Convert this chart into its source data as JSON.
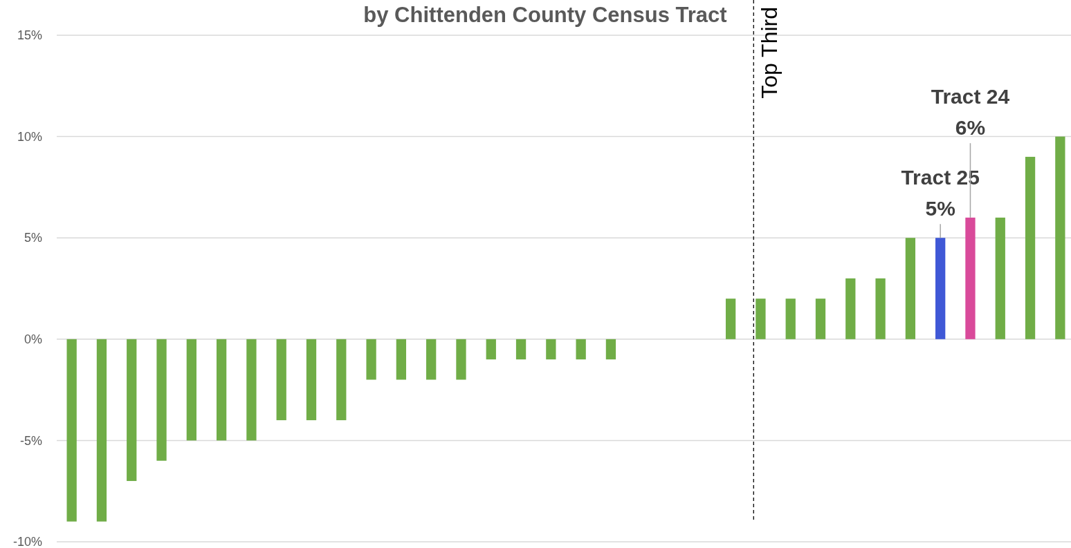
{
  "chart_data": {
    "type": "bar",
    "title": "by Chittenden County Census Tract",
    "categories": [
      null,
      null,
      null,
      null,
      null,
      null,
      null,
      null,
      null,
      null,
      null,
      null,
      null,
      null,
      null,
      null,
      null,
      null,
      null,
      null,
      null,
      null,
      null,
      null,
      null,
      null,
      null,
      null,
      null,
      null,
      null,
      null,
      null,
      null
    ],
    "values": [
      -9,
      -9,
      -7,
      -6,
      -5,
      -5,
      -5,
      -4,
      -4,
      -4,
      -2,
      -2,
      -2,
      -2,
      -1,
      -1,
      -1,
      -1,
      -1,
      0,
      0,
      0,
      2,
      2,
      2,
      2,
      3,
      3,
      5,
      5,
      6,
      6,
      9,
      10
    ],
    "colors": [
      "#70ad47",
      "#70ad47",
      "#70ad47",
      "#70ad47",
      "#70ad47",
      "#70ad47",
      "#70ad47",
      "#70ad47",
      "#70ad47",
      "#70ad47",
      "#70ad47",
      "#70ad47",
      "#70ad47",
      "#70ad47",
      "#70ad47",
      "#70ad47",
      "#70ad47",
      "#70ad47",
      "#70ad47",
      "#70ad47",
      "#70ad47",
      "#70ad47",
      "#70ad47",
      "#70ad47",
      "#70ad47",
      "#70ad47",
      "#70ad47",
      "#70ad47",
      "#70ad47",
      "#3f58d6",
      "#d94a9a",
      "#70ad47",
      "#70ad47",
      "#70ad47"
    ],
    "value_labels": [
      null,
      null,
      null,
      null,
      null,
      null,
      null,
      null,
      null,
      null,
      null,
      null,
      null,
      null,
      null,
      null,
      null,
      null,
      null,
      null,
      null,
      null,
      null,
      null,
      null,
      null,
      null,
      null,
      null,
      "Tract 25\n5%",
      "Tract 24\n6%",
      null,
      null,
      null
    ],
    "ylim": [
      -10,
      15
    ],
    "yticks": [
      {
        "value": -10,
        "label": "-10%"
      },
      {
        "value": -5,
        "label": "-5%"
      },
      {
        "value": 0,
        "label": "0%"
      },
      {
        "value": 5,
        "label": "5%"
      },
      {
        "value": 10,
        "label": "10%"
      },
      {
        "value": 15,
        "label": "15%"
      }
    ],
    "grid": "y",
    "tick_labels": "y",
    "annotations": [
      "Top Third"
    ]
  }
}
